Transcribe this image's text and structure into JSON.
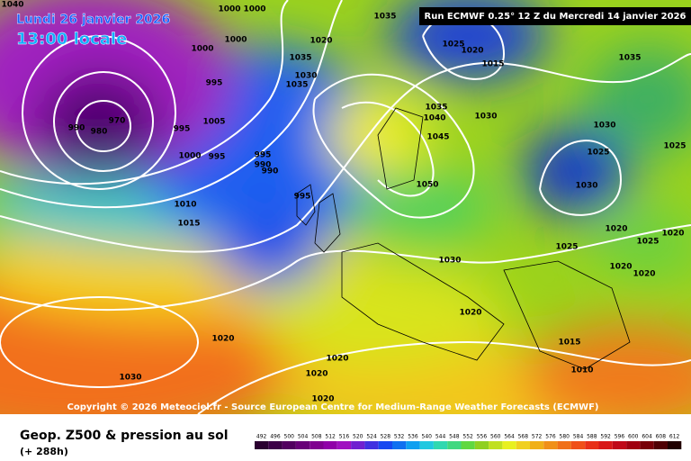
{
  "header": {
    "date": "Lundi 26 janvier 2026",
    "time": "13:00 locale",
    "run": "Run ECMWF 0.25° 12 Z du Mercredi 14 janvier 2026"
  },
  "copyright": "Copyright © 2026 Meteociel.fr - Source European Centre for Medium-Range Weather Forecasts (ECMWF)",
  "footer": {
    "title": "Geop. Z500 & pression au sol",
    "lead": "(+ 288h)"
  },
  "isobar_labels": [
    "1040",
    "1000",
    "1000",
    "1020",
    "1035",
    "1000",
    "1000",
    "1035",
    "1030",
    "1035",
    "995",
    "1005",
    "995",
    "990",
    "980",
    "970",
    "1000",
    "995",
    "995",
    "990",
    "990",
    "995",
    "1010",
    "1015",
    "1025",
    "1020",
    "1015",
    "1035",
    "1035",
    "1040",
    "1030",
    "1045",
    "1050",
    "1030",
    "1025",
    "1025",
    "1030",
    "1020",
    "1025",
    "1020",
    "1025",
    "1030",
    "1020",
    "1020",
    "1020",
    "1015",
    "1020",
    "1020",
    "1020",
    "1030",
    "1010",
    "1020",
    "1025",
    "1005",
    "1010"
  ],
  "colorbar_labels": [
    "492",
    "496",
    "500",
    "504",
    "508",
    "512",
    "516",
    "520",
    "524",
    "528",
    "532",
    "536",
    "540",
    "544",
    "548",
    "552",
    "556",
    "560",
    "564",
    "568",
    "572",
    "576",
    "580",
    "584",
    "588",
    "592",
    "596",
    "600",
    "604",
    "608",
    "612"
  ]
}
